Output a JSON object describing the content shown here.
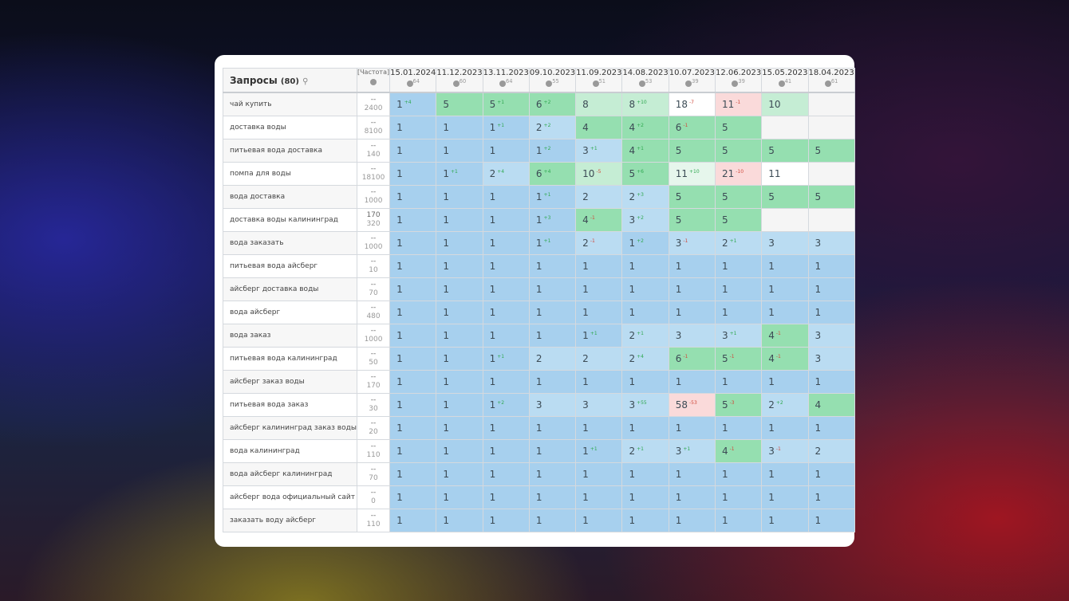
{
  "header": {
    "queries_label": "Запросы",
    "queries_count": "(80)",
    "search_icon": "search-icon",
    "freq_label": "[Частота]",
    "freq_icon": "globe-icon"
  },
  "dates": [
    {
      "date": "15.01.2024",
      "count": "64"
    },
    {
      "date": "11.12.2023",
      "count": "60"
    },
    {
      "date": "13.11.2023",
      "count": "64"
    },
    {
      "date": "09.10.2023",
      "count": "55"
    },
    {
      "date": "11.09.2023",
      "count": "51"
    },
    {
      "date": "14.08.2023",
      "count": "53"
    },
    {
      "date": "10.07.2023",
      "count": "39"
    },
    {
      "date": "12.06.2023",
      "count": "39"
    },
    {
      "date": "15.05.2023",
      "count": "41"
    },
    {
      "date": "18.04.2023",
      "count": "61"
    }
  ],
  "colors": {
    "b": "#a7d0ee",
    "lb": "#badcf2",
    "g": "#95dfb0",
    "lg": "#c5edd4",
    "xl": "#e6f6ec",
    "w": "#ffffff",
    "r": "#fadada",
    "e": "#f5f5f5",
    "delta_up": "#2ea84f",
    "delta_down": "#d04a3c"
  },
  "rows": [
    {
      "q": "чай купить",
      "f1": "--",
      "f2": "2400",
      "cells": [
        "1|+4|b",
        "5||g",
        "5|+1|g",
        "6|+2|g",
        "8||lg",
        "8|+10|lg",
        "18|-7|w",
        "11|-1|r",
        "10||lg",
        "||e"
      ]
    },
    {
      "q": "доставка воды",
      "f1": "--",
      "f2": "8100",
      "cells": [
        "1||b",
        "1||b",
        "1|+1|b",
        "2|+2|lb",
        "4||g",
        "4|+2|g",
        "6|-1|g",
        "5||g",
        "||e",
        "||e"
      ]
    },
    {
      "q": "питьевая вода доставка",
      "f1": "--",
      "f2": "140",
      "cells": [
        "1||b",
        "1||b",
        "1||b",
        "1|+2|b",
        "3|+1|lb",
        "4|+1|g",
        "5||g",
        "5||g",
        "5||g",
        "5||g"
      ]
    },
    {
      "q": "помпа для воды",
      "f1": "--",
      "f2": "18100",
      "cells": [
        "1||b",
        "1|+1|b",
        "2|+4|lb",
        "6|+4|g",
        "10|-5|lg",
        "5|+6|g",
        "11|+10|xl",
        "21|-10|r",
        "11||w",
        "||e"
      ]
    },
    {
      "q": "вода доставка",
      "f1": "--",
      "f2": "1000",
      "cells": [
        "1||b",
        "1||b",
        "1||b",
        "1|+1|b",
        "2||lb",
        "2|+3|lb",
        "5||g",
        "5||g",
        "5||g",
        "5||g"
      ]
    },
    {
      "q": "доставка воды калининград",
      "f1": "170",
      "f2": "320",
      "cells": [
        "1||b",
        "1||b",
        "1||b",
        "1|+3|b",
        "4|-1|g",
        "3|+2|lb",
        "5||g",
        "5||g",
        "||e",
        "||e"
      ]
    },
    {
      "q": "вода заказать",
      "f1": "--",
      "f2": "1000",
      "cells": [
        "1||b",
        "1||b",
        "1||b",
        "1|+1|b",
        "2|-1|lb",
        "1|+2|b",
        "3|-1|lb",
        "2|+1|lb",
        "3||lb",
        "3||lb"
      ]
    },
    {
      "q": "питьевая вода айсберг",
      "f1": "--",
      "f2": "10",
      "cells": [
        "1||b",
        "1||b",
        "1||b",
        "1||b",
        "1||b",
        "1||b",
        "1||b",
        "1||b",
        "1||b",
        "1||b"
      ]
    },
    {
      "q": "айсберг доставка воды",
      "f1": "--",
      "f2": "70",
      "cells": [
        "1||b",
        "1||b",
        "1||b",
        "1||b",
        "1||b",
        "1||b",
        "1||b",
        "1||b",
        "1||b",
        "1||b"
      ]
    },
    {
      "q": "вода айсберг",
      "f1": "--",
      "f2": "480",
      "cells": [
        "1||b",
        "1||b",
        "1||b",
        "1||b",
        "1||b",
        "1||b",
        "1||b",
        "1||b",
        "1||b",
        "1||b"
      ]
    },
    {
      "q": "вода заказ",
      "f1": "--",
      "f2": "1000",
      "cells": [
        "1||b",
        "1||b",
        "1||b",
        "1||b",
        "1|+1|b",
        "2|+1|lb",
        "3||lb",
        "3|+1|lb",
        "4|-1|g",
        "3||lb"
      ]
    },
    {
      "q": "питьевая вода калининград",
      "f1": "--",
      "f2": "50",
      "cells": [
        "1||b",
        "1||b",
        "1|+1|b",
        "2||lb",
        "2||lb",
        "2|+4|lb",
        "6|-1|g",
        "5|-1|g",
        "4|-1|g",
        "3||lb"
      ]
    },
    {
      "q": "айсберг заказ воды",
      "f1": "--",
      "f2": "170",
      "cells": [
        "1||b",
        "1||b",
        "1||b",
        "1||b",
        "1||b",
        "1||b",
        "1||b",
        "1||b",
        "1||b",
        "1||b"
      ]
    },
    {
      "q": "питьевая вода заказ",
      "f1": "--",
      "f2": "30",
      "cells": [
        "1||b",
        "1||b",
        "1|+2|b",
        "3||lb",
        "3||lb",
        "3|+55|lb",
        "58|-53|r",
        "5|-3|g",
        "2|+2|lb",
        "4||g"
      ]
    },
    {
      "q": "айсберг калининград заказ воды",
      "f1": "--",
      "f2": "20",
      "cells": [
        "1||b",
        "1||b",
        "1||b",
        "1||b",
        "1||b",
        "1||b",
        "1||b",
        "1||b",
        "1||b",
        "1||b"
      ]
    },
    {
      "q": "вода калининград",
      "f1": "--",
      "f2": "110",
      "cells": [
        "1||b",
        "1||b",
        "1||b",
        "1||b",
        "1|+1|b",
        "2|+1|lb",
        "3|+1|lb",
        "4|-1|g",
        "3|-1|lb",
        "2||lb"
      ]
    },
    {
      "q": "вода айсберг калининград",
      "f1": "--",
      "f2": "70",
      "cells": [
        "1||b",
        "1||b",
        "1||b",
        "1||b",
        "1||b",
        "1||b",
        "1||b",
        "1||b",
        "1||b",
        "1||b"
      ]
    },
    {
      "q": "айсберг вода официальный сайт",
      "f1": "--",
      "f2": "0",
      "cells": [
        "1||b",
        "1||b",
        "1||b",
        "1||b",
        "1||b",
        "1||b",
        "1||b",
        "1||b",
        "1||b",
        "1||b"
      ]
    },
    {
      "q": "заказать воду айсберг",
      "f1": "--",
      "f2": "110",
      "cells": [
        "1||b",
        "1||b",
        "1||b",
        "1||b",
        "1||b",
        "1||b",
        "1||b",
        "1||b",
        "1||b",
        "1||b"
      ]
    }
  ]
}
